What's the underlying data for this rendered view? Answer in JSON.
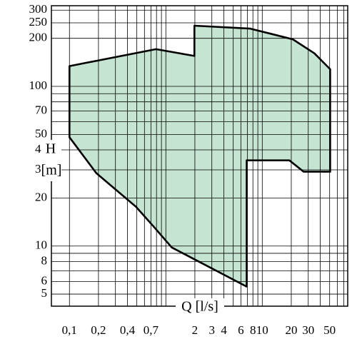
{
  "chart_data": {
    "type": "area",
    "x": [
      0.1,
      0.79,
      1.98,
      1.98,
      7.5,
      20.8,
      34.7,
      50.6,
      50.6,
      26.9,
      19.1,
      6.9,
      6.9,
      1.15,
      0.75,
      0.49,
      0.19,
      0.1
    ],
    "values": [
      134,
      171,
      155,
      240,
      230,
      197,
      161,
      128,
      29.2,
      29.2,
      34.4,
      34.4,
      5.57,
      9.8,
      13.2,
      17.6,
      28.6,
      48
    ],
    "color": "#c6e4d2",
    "x_label": "Q [l/s]",
    "y_label": "H",
    "y_unit": "[m]",
    "log_x": true,
    "log_y": true,
    "xlim": [
      0.065,
      77
    ],
    "ylim": [
      4.2,
      320
    ],
    "xticks": [
      {
        "value": 0.1,
        "label": "0,1"
      },
      {
        "value": 0.2,
        "label": "0,2"
      },
      {
        "value": 0.4,
        "label": "0,4"
      },
      {
        "value": 0.7,
        "label": "0,7"
      },
      2,
      3,
      4,
      6,
      8,
      10,
      20,
      30,
      50
    ],
    "yticks": [
      300,
      250,
      200,
      100,
      70,
      50,
      40,
      30,
      20,
      10,
      8,
      6,
      5
    ],
    "xgrid": [
      0.1,
      0.2,
      0.3,
      0.4,
      0.5,
      0.6,
      0.7,
      0.8,
      0.9,
      1,
      2,
      3,
      4,
      5,
      6,
      7,
      8,
      9,
      10,
      20,
      30,
      40,
      50,
      60,
      70
    ],
    "ygrid": [
      5,
      6,
      7,
      8,
      9,
      10,
      20,
      30,
      40,
      50,
      60,
      70,
      80,
      90,
      100,
      200,
      250,
      300
    ]
  }
}
